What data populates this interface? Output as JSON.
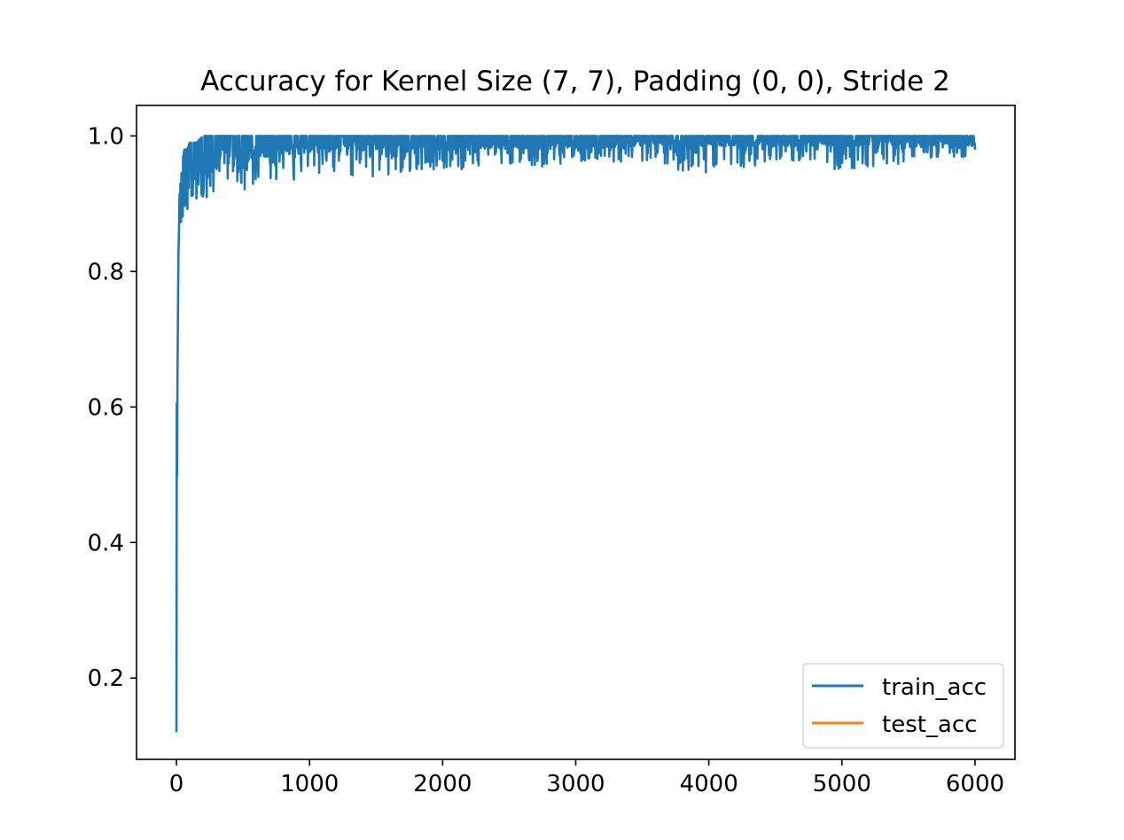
{
  "chart_data": {
    "type": "line",
    "title": "Accuracy for Kernel Size (7, 7), Padding (0, 0), Stride 2",
    "xlabel": "",
    "ylabel": "",
    "xlim": [
      -300,
      6300
    ],
    "ylim": [
      0.08,
      1.045
    ],
    "x_ticks": [
      0,
      1000,
      2000,
      3000,
      4000,
      5000,
      6000
    ],
    "x_tick_labels": [
      "0",
      "1000",
      "2000",
      "3000",
      "4000",
      "5000",
      "6000"
    ],
    "y_ticks": [
      0.2,
      0.4,
      0.6,
      0.8,
      1.0
    ],
    "y_tick_labels": [
      "0.2",
      "0.4",
      "0.6",
      "0.8",
      "1.0"
    ],
    "grid": false,
    "legend_position": "lower-right",
    "series": [
      {
        "name": "train_acc",
        "color": "#1f77b4",
        "x_end": 6000,
        "envelope": {
          "x": [
            0,
            2,
            5,
            10,
            15,
            20,
            30,
            40,
            50,
            60,
            80,
            100,
            120,
            150,
            200,
            250,
            300,
            400,
            500,
            600,
            800,
            1000,
            1200,
            1500,
            2000,
            2500,
            3000,
            3500,
            4000,
            4500,
            5000,
            5500,
            6000
          ],
          "upper": [
            0.55,
            0.6,
            0.75,
            0.8,
            0.86,
            0.9,
            0.93,
            0.95,
            0.97,
            0.98,
            0.98,
            0.99,
            0.99,
            0.99,
            1.0,
            1.0,
            1.0,
            1.0,
            1.0,
            1.0,
            1.0,
            1.0,
            1.0,
            1.0,
            1.0,
            1.0,
            1.0,
            1.0,
            1.0,
            1.0,
            1.0,
            1.0,
            1.0
          ],
          "base": [
            0.12,
            0.35,
            0.5,
            0.7,
            0.8,
            0.84,
            0.87,
            0.88,
            0.89,
            0.9,
            0.91,
            0.92,
            0.93,
            0.935,
            0.94,
            0.945,
            0.95,
            0.955,
            0.96,
            0.965,
            0.97,
            0.975,
            0.975,
            0.98,
            0.98,
            0.98,
            0.98,
            0.985,
            0.985,
            0.985,
            0.985,
            0.985,
            0.985
          ],
          "min_dips": [
            0.12,
            0.12,
            0.5,
            0.7,
            0.8,
            0.84,
            0.86,
            0.87,
            0.88,
            0.89,
            0.89,
            0.9,
            0.9,
            0.9,
            0.91,
            0.9,
            0.92,
            0.92,
            0.92,
            0.93,
            0.93,
            0.94,
            0.94,
            0.94,
            0.95,
            0.95,
            0.96,
            0.96,
            0.94,
            0.96,
            0.95,
            0.96,
            0.97
          ]
        }
      },
      {
        "name": "test_acc",
        "color": "#ff7f0e",
        "x": [],
        "y": []
      }
    ]
  }
}
